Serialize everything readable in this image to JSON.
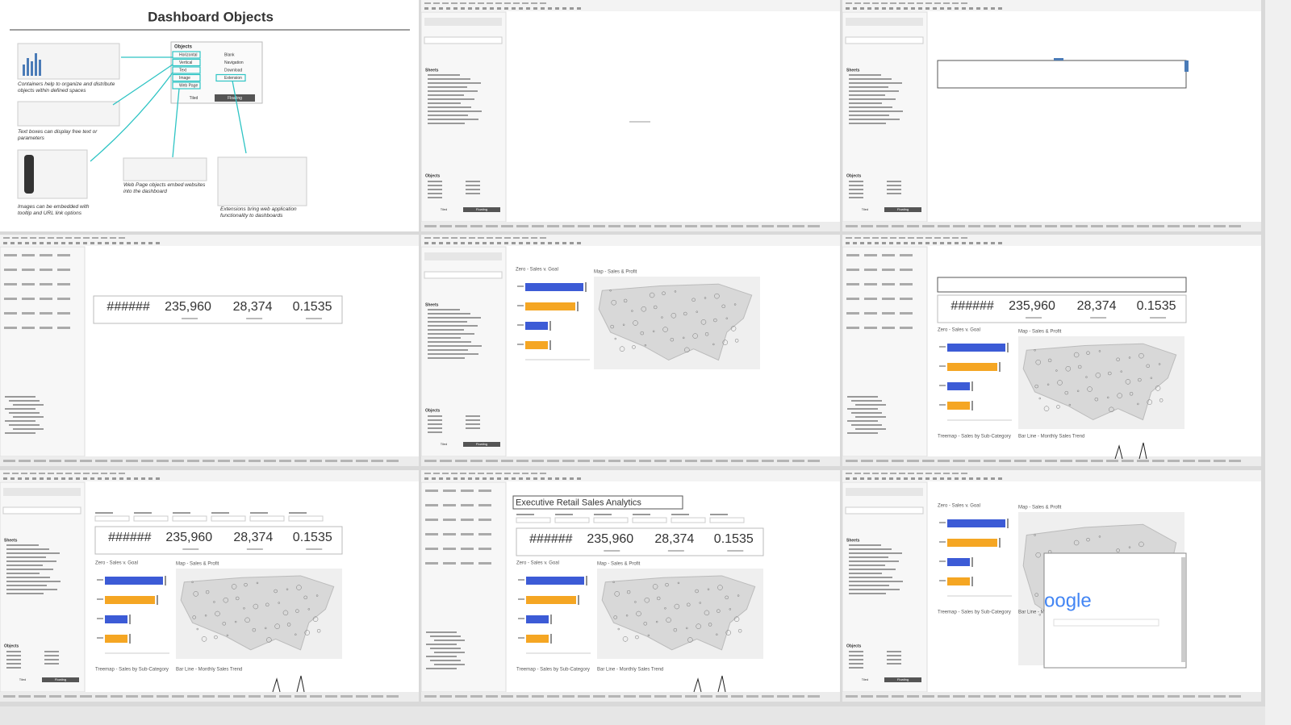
{
  "slide": {
    "title": "Dashboard Objects",
    "objects_heading": "Objects",
    "objects_left": [
      "Horizontal",
      "Vertical",
      "Text",
      "Image",
      "Web Page"
    ],
    "objects_right": [
      "Blank",
      "Navigation",
      "Download",
      "Extension"
    ],
    "tabs": [
      "Tiled",
      "Floating"
    ],
    "captions": [
      "Containers help to organize and distribute objects within defined spaces",
      "Text boxes can display free text or parameters",
      "Images can be embedded with tooltip and URL link options",
      "Web Page objects embed websites into the dashboard",
      "Extensions bring web application functionality to dashboards"
    ]
  },
  "pane": {
    "sheets_heading": "Sheets",
    "objects_heading": "Objects",
    "tabs": [
      "Tiled",
      "Floating"
    ]
  },
  "kpis": [
    "######",
    "235,960",
    "28,374",
    "0.1535"
  ],
  "sheet_titles": {
    "bar": "Zero - Sales v. Goal",
    "map": "Map - Sales & Profit",
    "treemap": "Treemap - Sales by Sub-Category",
    "barline": "Bar Line - Monthly Sales Trend"
  },
  "dashboard_title": "Executive Retail Sales Analytics",
  "web_text": "oogle"
}
